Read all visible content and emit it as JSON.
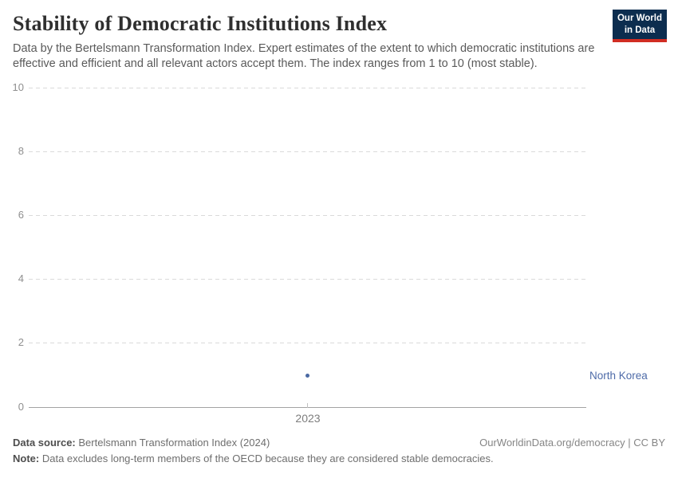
{
  "header": {
    "title": "Stability of Democratic Institutions Index",
    "subtitle": "Data by the Bertelsmann Transformation Index. Expert estimates of the extent to which democratic institutions are effective and efficient and all relevant actors accept them. The index ranges from 1 to 10 (most stable).",
    "logo": {
      "line1": "Our World",
      "line2": "in Data",
      "bg_color": "#0c2d4f",
      "accent_color": "#d12d23"
    }
  },
  "chart_data": {
    "type": "scatter",
    "title": "Stability of Democratic Institutions Index",
    "x": [
      2023
    ],
    "series": [
      {
        "name": "North Korea",
        "values": [
          1
        ],
        "color": "#4a69a3"
      }
    ],
    "xlabel": "",
    "ylabel": "",
    "ylim": [
      0,
      10
    ],
    "yticks": [
      "0",
      "2",
      "4",
      "6",
      "8",
      "10"
    ],
    "xticks": [
      "2023"
    ],
    "grid": "horizontal-dashed",
    "legend_position": "right-of-point",
    "entity_label": "North Korea"
  },
  "footer": {
    "source_label": "Data source:",
    "source_text": "Bertelsmann Transformation Index (2024)",
    "note_label": "Note:",
    "note_text": "Data excludes long-term members of the OECD because they are considered stable democracies.",
    "license_text": "OurWorldinData.org/democracy | CC BY"
  }
}
